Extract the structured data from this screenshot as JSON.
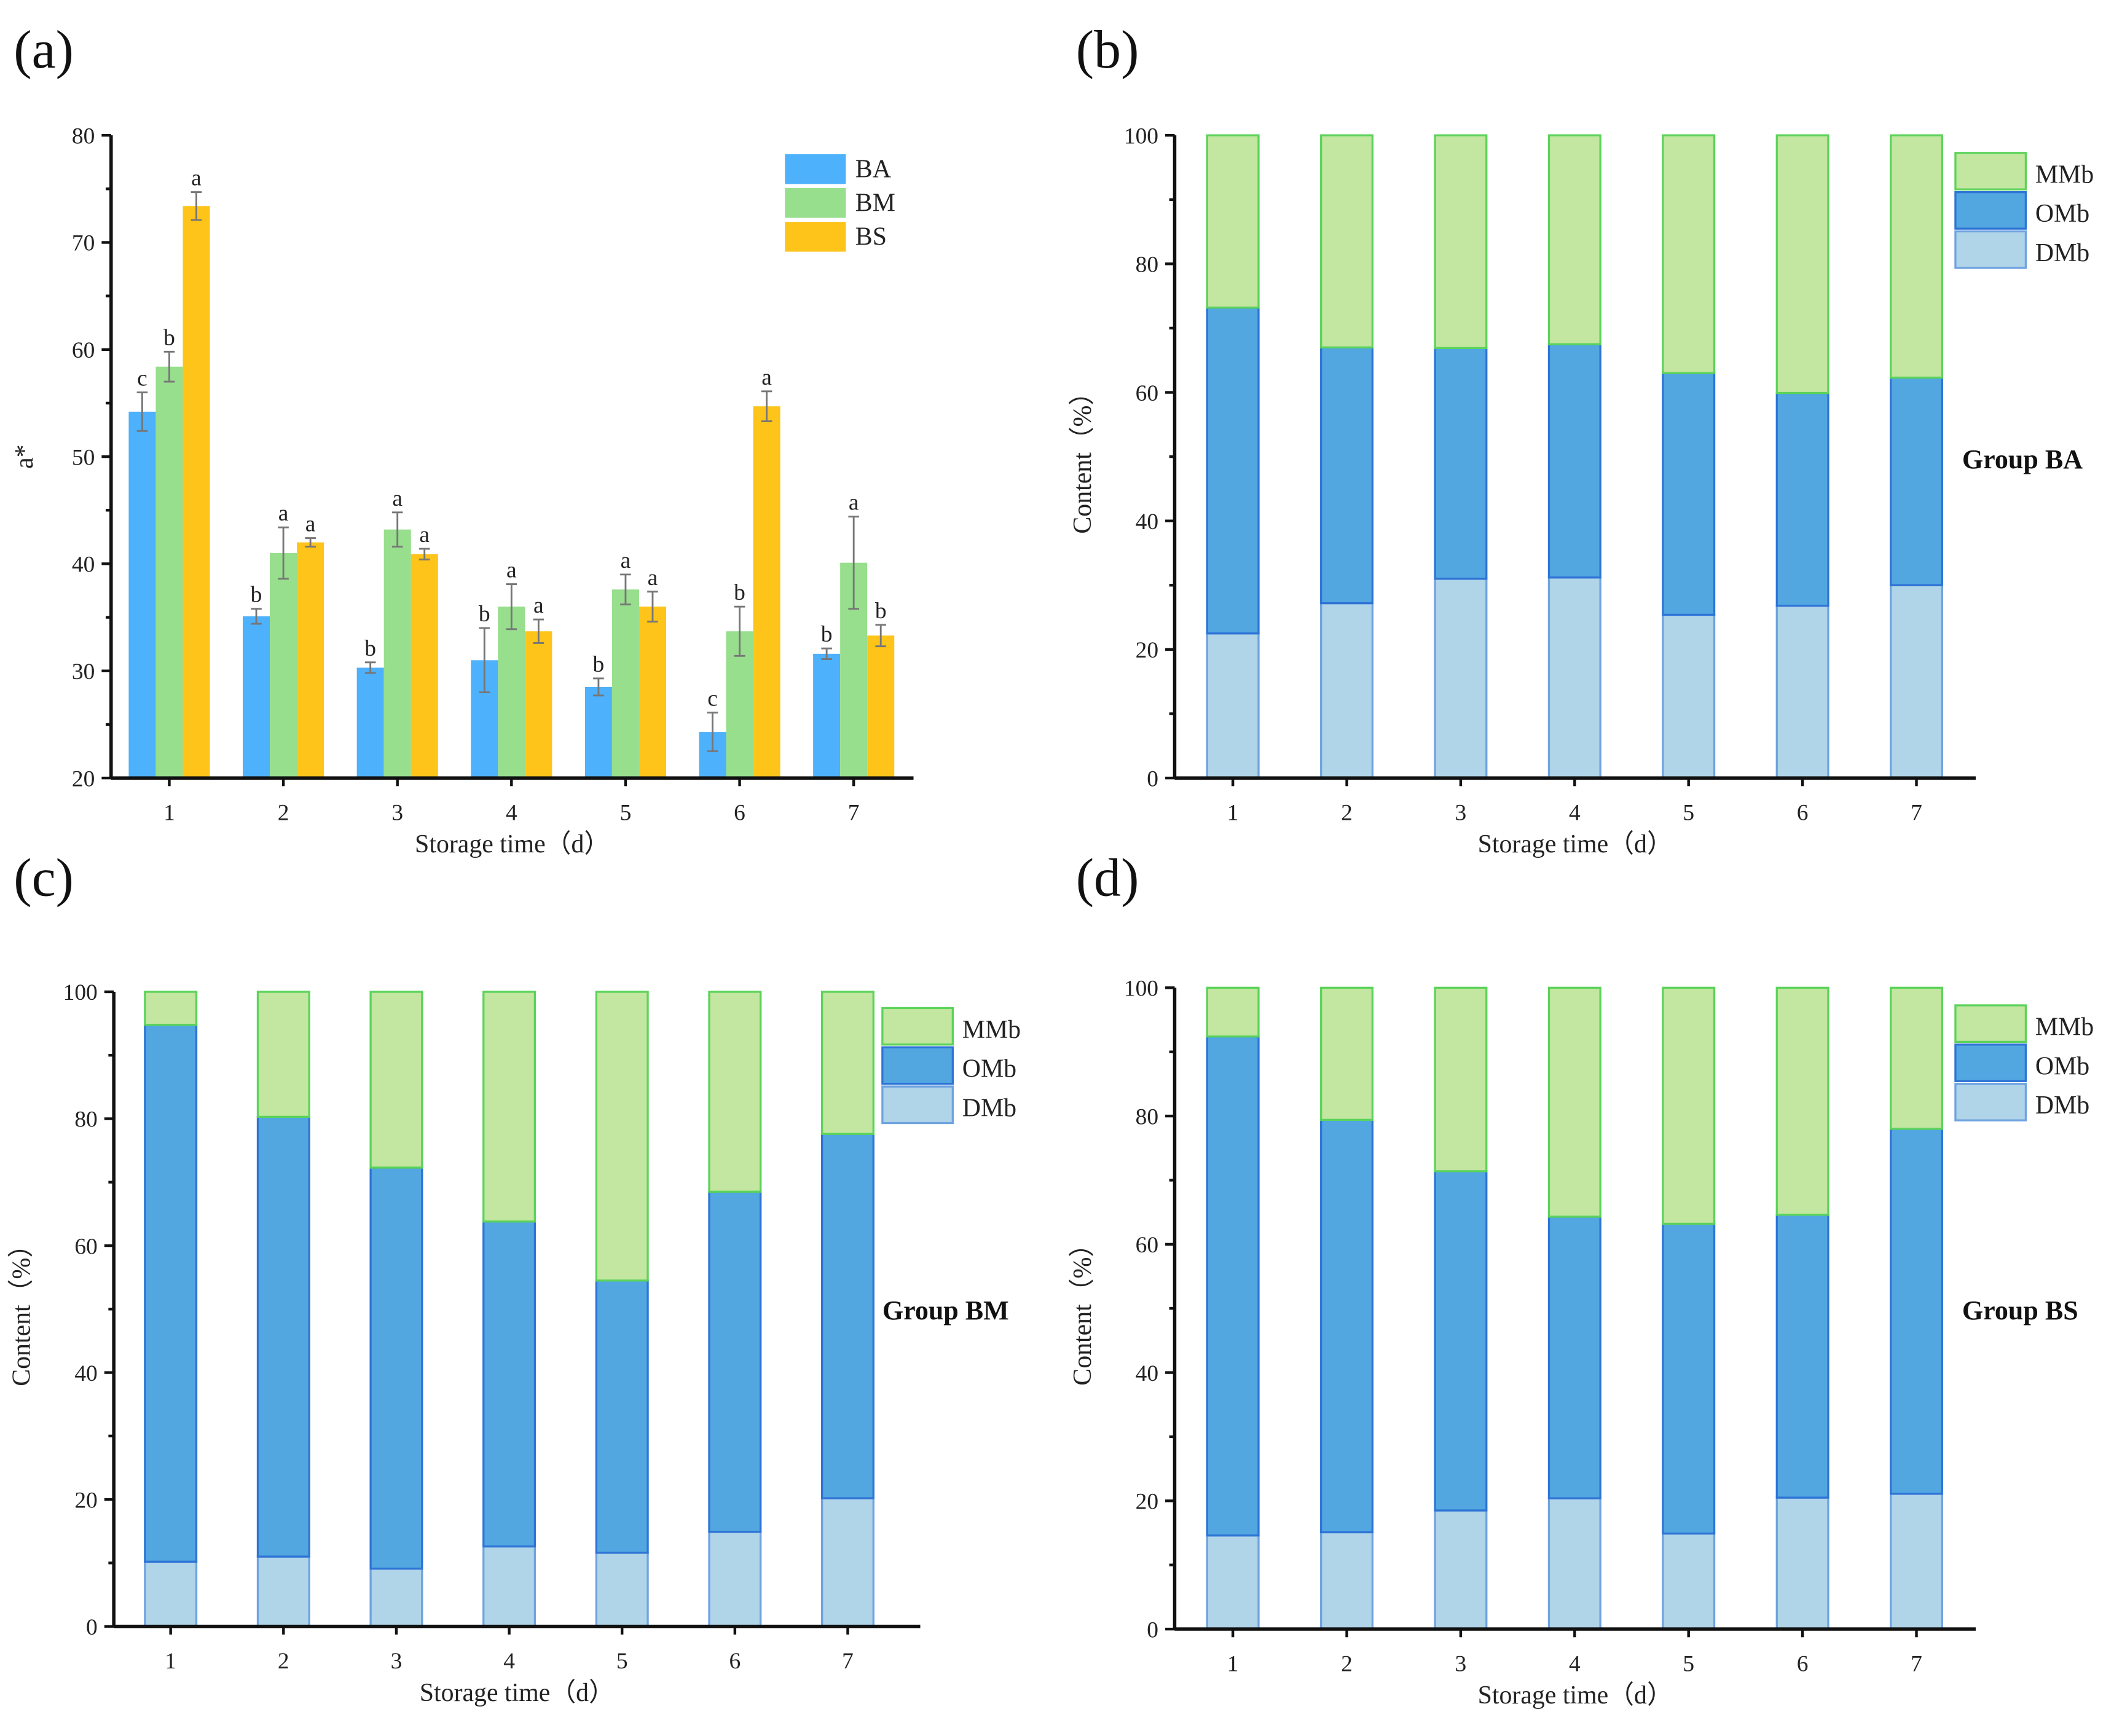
{
  "colors": {
    "BA": "#4db1fb",
    "BM": "#97de8d",
    "BS": "#fec41a",
    "MMb": "#c3e6a0",
    "MMb_edge": "#5bd35a",
    "OMb": "#52a7e0",
    "OMb_edge": "#2e74d6",
    "DMb": "#b0d4e8",
    "DMb_edge": "#6fa3e0"
  },
  "chart_data": [
    {
      "panel": "(a)",
      "type": "bar",
      "xlabel": "Storage time（d）",
      "ylabel": "a*",
      "ylim": [
        20,
        80
      ],
      "yticks": [
        20,
        30,
        40,
        50,
        60,
        70,
        80
      ],
      "categories": [
        "1",
        "2",
        "3",
        "4",
        "5",
        "6",
        "7"
      ],
      "legend_position": "top-right",
      "series": [
        {
          "name": "BA",
          "values": [
            54.2,
            35.1,
            30.3,
            31.0,
            28.5,
            24.3,
            31.6
          ],
          "errors": [
            1.8,
            0.7,
            0.5,
            3.0,
            0.8,
            1.8,
            0.5
          ],
          "letters": [
            "c",
            "b",
            "b",
            "b",
            "b",
            "c",
            "b"
          ]
        },
        {
          "name": "BM",
          "values": [
            58.4,
            41.0,
            43.2,
            36.0,
            37.6,
            33.7,
            40.1
          ],
          "errors": [
            1.4,
            2.4,
            1.6,
            2.1,
            1.4,
            2.3,
            4.3
          ],
          "letters": [
            "b",
            "a",
            "a",
            "a",
            "a",
            "b",
            "a"
          ]
        },
        {
          "name": "BS",
          "values": [
            73.4,
            42.0,
            40.9,
            33.7,
            36.0,
            54.7,
            33.3
          ],
          "errors": [
            1.3,
            0.4,
            0.5,
            1.1,
            1.4,
            1.4,
            1.0
          ],
          "letters": [
            "a",
            "a",
            "a",
            "a",
            "a",
            "a",
            "b"
          ]
        }
      ]
    },
    {
      "panel": "(b)",
      "type": "bar",
      "stacked": true,
      "group": "Group BA",
      "xlabel": "Storage time（d）",
      "ylabel": "Content（%）",
      "ylim": [
        0,
        100
      ],
      "yticks": [
        0,
        20,
        40,
        60,
        80,
        100
      ],
      "categories": [
        "1",
        "2",
        "3",
        "4",
        "5",
        "6",
        "7"
      ],
      "legend_position": "top-right",
      "series": [
        {
          "name": "DMb",
          "values": [
            22.5,
            27.2,
            31.0,
            31.2,
            25.4,
            26.8,
            30.0
          ]
        },
        {
          "name": "OMb",
          "values": [
            50.7,
            39.8,
            35.9,
            36.3,
            37.6,
            33.1,
            32.3
          ]
        },
        {
          "name": "MMb",
          "values": [
            26.8,
            33.0,
            33.1,
            32.5,
            37.0,
            40.1,
            37.7
          ]
        }
      ]
    },
    {
      "panel": "(c)",
      "type": "bar",
      "stacked": true,
      "group": "Group BM",
      "xlabel": "Storage time（d）",
      "ylabel": "Content（%）",
      "ylim": [
        0,
        100
      ],
      "yticks": [
        0,
        20,
        40,
        60,
        80,
        100
      ],
      "categories": [
        "1",
        "2",
        "3",
        "4",
        "5",
        "6",
        "7"
      ],
      "legend_position": "top-right",
      "series": [
        {
          "name": "DMb",
          "values": [
            10.2,
            11.0,
            9.1,
            12.6,
            11.6,
            14.9,
            20.2
          ]
        },
        {
          "name": "OMb",
          "values": [
            84.6,
            69.3,
            63.2,
            51.2,
            42.9,
            53.6,
            57.4
          ]
        },
        {
          "name": "MMb",
          "values": [
            5.2,
            19.7,
            27.7,
            36.2,
            45.5,
            31.5,
            22.4
          ]
        }
      ]
    },
    {
      "panel": "(d)",
      "type": "bar",
      "stacked": true,
      "group": "Group BS",
      "xlabel": "Storage time（d）",
      "ylabel": "Content（%）",
      "ylim": [
        0,
        100
      ],
      "yticks": [
        0,
        20,
        40,
        60,
        80,
        100
      ],
      "categories": [
        "1",
        "2",
        "3",
        "4",
        "5",
        "6",
        "7"
      ],
      "legend_position": "top-right",
      "series": [
        {
          "name": "DMb",
          "values": [
            14.6,
            15.1,
            18.5,
            20.4,
            14.9,
            20.5,
            21.1
          ]
        },
        {
          "name": "OMb",
          "values": [
            77.8,
            64.3,
            52.9,
            43.9,
            48.3,
            44.1,
            56.9
          ]
        },
        {
          "name": "MMb",
          "values": [
            7.6,
            20.6,
            28.6,
            35.7,
            36.8,
            35.4,
            22.0
          ]
        }
      ]
    }
  ]
}
